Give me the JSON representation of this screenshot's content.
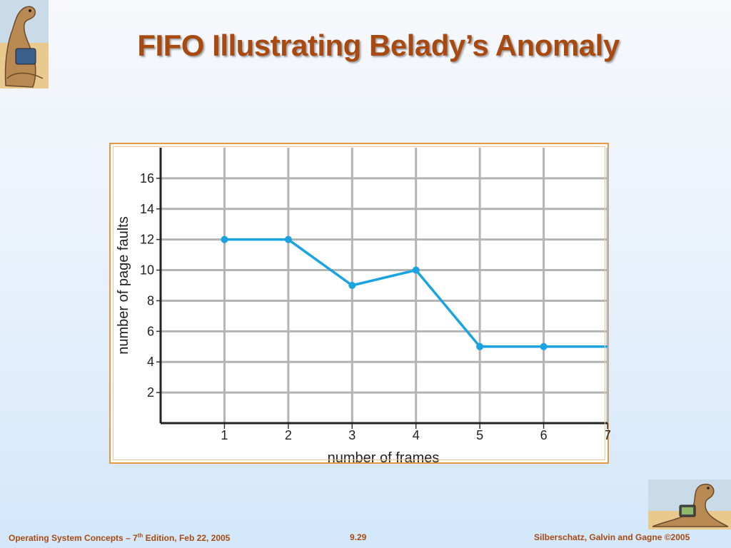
{
  "slide": {
    "title": "FIFO Illustrating Belady’s Anomaly"
  },
  "footer": {
    "left_prefix": "Operating System Concepts – 7",
    "left_sup": "th",
    "left_suffix": " Edition, Feb 22, 2005",
    "center": "9.29",
    "right": "Silberschatz, Galvin and Gagne ©2005"
  },
  "colors": {
    "title": "#a84a10",
    "line": "#1aa3e0",
    "grid": "#b4b4b4",
    "frame": "#e39a3e"
  },
  "chart_data": {
    "type": "line",
    "title": "",
    "xlabel": "number of frames",
    "ylabel": "number of page faults",
    "x": [
      1,
      2,
      3,
      4,
      5,
      6,
      7
    ],
    "x_ticks": [
      "1",
      "2",
      "3",
      "4",
      "5",
      "6",
      "7"
    ],
    "y_ticks": [
      "2",
      "4",
      "6",
      "8",
      "10",
      "12",
      "14",
      "16"
    ],
    "xlim": [
      0,
      7
    ],
    "ylim": [
      0,
      18
    ],
    "grid": true,
    "series": [
      {
        "values": [
          12,
          12,
          9,
          10,
          5,
          5,
          5
        ],
        "markers": [
          true,
          true,
          true,
          true,
          true,
          true,
          false
        ]
      }
    ]
  }
}
